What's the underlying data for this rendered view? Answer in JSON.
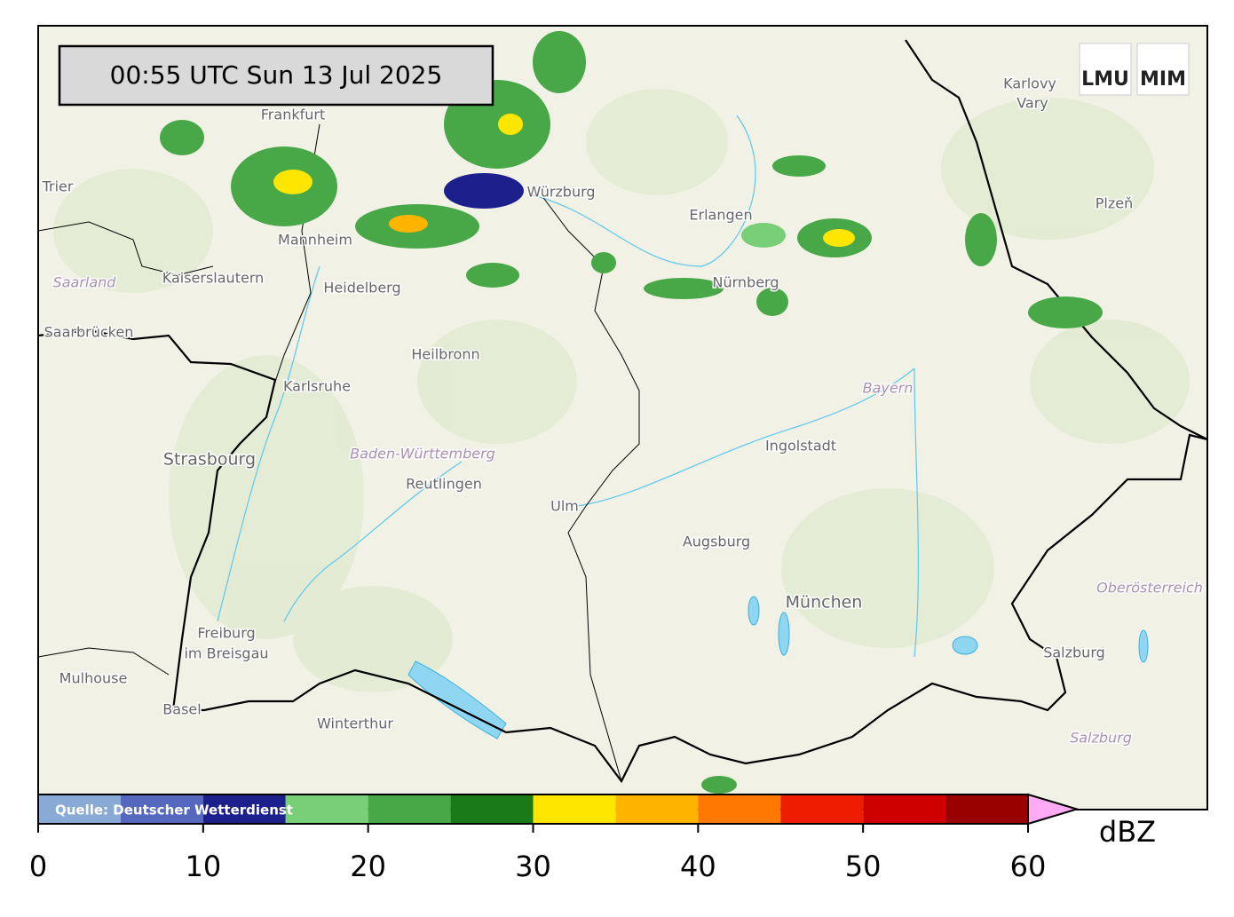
{
  "timestamp": "00:55 UTC  Sun 13 Jul 2025",
  "logos": [
    "LMU",
    "MIM"
  ],
  "source": "Quelle: Deutscher Wetterdienst",
  "places": [
    "Trier",
    "Saarland",
    "Kaiserslautern",
    "Saarbrücken",
    "Mannheim",
    "Heidelberg",
    "Heilbronn",
    "Karlsruhe",
    "Strasbourg",
    "Baden-Württemberg",
    "Reutlingen",
    "Ulm",
    "Augsburg",
    "Ingolstadt",
    "Bayern",
    "München",
    "Freiburg",
    "im Breisgau",
    "Mulhouse",
    "Basel",
    "Winterthur",
    "Würzburg",
    "Erlangen",
    "Nürnberg",
    "Karlovy",
    "Vary",
    "Plzeň",
    "Oberösterreich",
    "Salzburg",
    "Salzburg",
    "Frankfurt"
  ],
  "colorbar": {
    "unit": "dBZ",
    "levels": [
      0,
      5,
      10,
      15,
      20,
      25,
      30,
      35,
      40,
      45,
      50,
      55,
      60
    ],
    "colors": [
      "#8aaad6",
      "#5668bd",
      "#1c1f8c",
      "#78cf78",
      "#48a848",
      "#1a7a1a",
      "#ffe600",
      "#ffb400",
      "#ff7800",
      "#ee1c00",
      "#cf0000",
      "#990000"
    ],
    "extend_color": "#ffaaf5",
    "ticks": [
      0,
      10,
      20,
      30,
      40,
      50,
      60
    ]
  }
}
